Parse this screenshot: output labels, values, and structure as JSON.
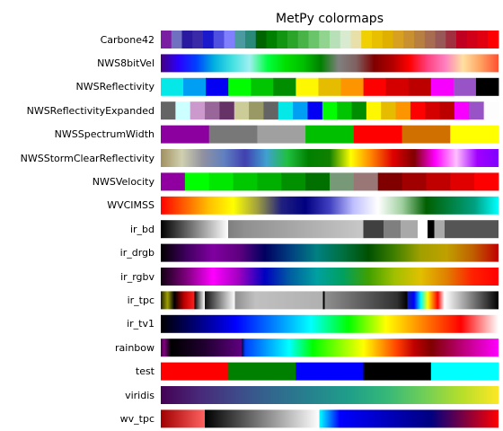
{
  "chart_data": {
    "type": "colormap-strips",
    "title": "MetPy colormaps",
    "rows": [
      {
        "name": "Carbone42",
        "mode": "discrete",
        "colors": [
          "#7a1fa2",
          "#7070c0",
          "#2a1aa0",
          "#3a2aa8",
          "#1a1acc",
          "#5050e0",
          "#8080ff",
          "#4a9aa0",
          "#2a8a7a",
          "#006400",
          "#008000",
          "#129612",
          "#2aa52a",
          "#48b448",
          "#6ac46a",
          "#90d490",
          "#b8e0b8",
          "#d8ead0",
          "#e8e0a8",
          "#f0d000",
          "#e8c000",
          "#e0b000",
          "#d8a020",
          "#c89030",
          "#b88040",
          "#a86c50",
          "#985858",
          "#a03040",
          "#c00020",
          "#d00018",
          "#e00010",
          "#ff0000"
        ]
      },
      {
        "name": "NWS8bitVel",
        "mode": "gradient",
        "colors": [
          "#44007f",
          "#2a00ff",
          "#0040ff",
          "#00b0e0",
          "#40e0e0",
          "#a0f0f0",
          "#00ff40",
          "#00e000",
          "#00c000",
          "#008000",
          "#808080",
          "#806060",
          "#800000",
          "#b00000",
          "#ff0000",
          "#ff4080",
          "#ff80c0",
          "#ffe0a0",
          "#ffa060",
          "#ff5030"
        ]
      },
      {
        "name": "NWSReflectivity",
        "mode": "discrete",
        "colors": [
          "#04e9e7",
          "#019ff4",
          "#0300f4",
          "#02fd02",
          "#01c501",
          "#008e00",
          "#fdf802",
          "#e5bc00",
          "#fd9500",
          "#fd0000",
          "#d40000",
          "#bc0000",
          "#f800fd",
          "#9854c6",
          "#000000"
        ]
      },
      {
        "name": "NWSReflectivityExpanded",
        "mode": "discrete",
        "colors": [
          "#646464",
          "#ccffff",
          "#cc99cc",
          "#996699",
          "#663366",
          "#cccc99",
          "#999966",
          "#646464",
          "#04e9e7",
          "#019ff4",
          "#0300f4",
          "#02fd02",
          "#01c501",
          "#008e00",
          "#fdf802",
          "#e5bc00",
          "#fd9500",
          "#fd0000",
          "#d40000",
          "#bc0000",
          "#f800fd",
          "#9854c6",
          "#fdfdfd"
        ]
      },
      {
        "name": "NWSSpectrumWidth",
        "mode": "discrete",
        "colors": [
          "#8c00a0",
          "#787878",
          "#a0a0a0",
          "#00be00",
          "#ff0000",
          "#d07000",
          "#ffff00"
        ]
      },
      {
        "name": "NWSStormClearReflectivity",
        "mode": "gradient",
        "colors": [
          "#a09060",
          "#d0d0b0",
          "#9090a0",
          "#6080c0",
          "#4040b0",
          "#40a0d0",
          "#20c040",
          "#008000",
          "#108000",
          "#ffff00",
          "#ff8000",
          "#e00000",
          "#800000",
          "#ff00ff",
          "#ffc0ff",
          "#a000ff",
          "#8000ff"
        ]
      },
      {
        "name": "NWSVelocity",
        "mode": "discrete",
        "colors": [
          "#9000a0",
          "#00ff00",
          "#00e800",
          "#00c800",
          "#00b000",
          "#009000",
          "#007000",
          "#779977",
          "#997777",
          "#800000",
          "#a00000",
          "#c00000",
          "#e00000",
          "#ff0000"
        ]
      },
      {
        "name": "WVCIMSS",
        "mode": "gradient",
        "colors": [
          "#ff0000",
          "#ff6000",
          "#ffc000",
          "#ffff00",
          "#a0a040",
          "#202080",
          "#000080",
          "#4040c0",
          "#c0c0ff",
          "#ffffff",
          "#a0d0a0",
          "#006000",
          "#008040",
          "#00a080",
          "#00ffff"
        ]
      },
      {
        "name": "ir_bd",
        "mode": "stops",
        "stops": [
          [
            0,
            "#000000"
          ],
          [
            0.2,
            "#ffffff"
          ],
          [
            0.2,
            "#7f7f7f"
          ],
          [
            0.25,
            "#909090"
          ],
          [
            0.6,
            "#c8c8c8"
          ],
          [
            0.6,
            "#404040"
          ],
          [
            0.66,
            "#404040"
          ],
          [
            0.66,
            "#7f7f7f"
          ],
          [
            0.71,
            "#7f7f7f"
          ],
          [
            0.71,
            "#a9a9a9"
          ],
          [
            0.76,
            "#a9a9a9"
          ],
          [
            0.76,
            "#ffffff"
          ],
          [
            0.79,
            "#ffffff"
          ],
          [
            0.79,
            "#000000"
          ],
          [
            0.81,
            "#000000"
          ],
          [
            0.81,
            "#a9a9a9"
          ],
          [
            0.84,
            "#a9a9a9"
          ],
          [
            0.84,
            "#555555"
          ],
          [
            1,
            "#555555"
          ]
        ]
      },
      {
        "name": "ir_drgb",
        "mode": "gradient",
        "colors": [
          "#000000",
          "#400060",
          "#8000a0",
          "#600080",
          "#000060",
          "#004080",
          "#008080",
          "#007040",
          "#005000",
          "#408000",
          "#a0a000",
          "#c0a000",
          "#c06000",
          "#c00000"
        ]
      },
      {
        "name": "ir_rgbv",
        "mode": "gradient",
        "colors": [
          "#100010",
          "#800080",
          "#ff00ff",
          "#a000c0",
          "#0000c0",
          "#0060a0",
          "#00a0a0",
          "#00a060",
          "#40a000",
          "#a0c000",
          "#e0c000",
          "#e08000",
          "#ff2000",
          "#ff0000"
        ]
      },
      {
        "name": "ir_tpc",
        "mode": "stops",
        "stops": [
          [
            0,
            "#202000"
          ],
          [
            0.02,
            "#a0a000"
          ],
          [
            0.04,
            "#000000"
          ],
          [
            0.07,
            "#c00000"
          ],
          [
            0.1,
            "#ff2020"
          ],
          [
            0.1,
            "#000000"
          ],
          [
            0.13,
            "#ffffff"
          ],
          [
            0.13,
            "#101010"
          ],
          [
            0.22,
            "#ffffff"
          ],
          [
            0.22,
            "#909090"
          ],
          [
            0.28,
            "#c0c0c0"
          ],
          [
            0.48,
            "#b0b0b0"
          ],
          [
            0.48,
            "#000000"
          ],
          [
            0.485,
            "#000000"
          ],
          [
            0.485,
            "#909090"
          ],
          [
            0.7,
            "#303030"
          ],
          [
            0.73,
            "#000000"
          ],
          [
            0.73,
            "#1020a0"
          ],
          [
            0.75,
            "#0000ff"
          ],
          [
            0.77,
            "#00ffff"
          ],
          [
            0.79,
            "#ffff00"
          ],
          [
            0.82,
            "#ff0000"
          ],
          [
            0.84,
            "#ffffff"
          ],
          [
            0.86,
            "#e0e0e0"
          ],
          [
            1,
            "#000000"
          ]
        ]
      },
      {
        "name": "ir_tv1",
        "mode": "gradient",
        "colors": [
          "#000000",
          "#000080",
          "#0000ff",
          "#0080ff",
          "#00ffff",
          "#00ff00",
          "#ffff00",
          "#ff8000",
          "#ff0000",
          "#ffffff"
        ]
      },
      {
        "name": "rainbow",
        "mode": "stops",
        "stops": [
          [
            0,
            "#400040"
          ],
          [
            0.01,
            "#800080"
          ],
          [
            0.03,
            "#000000"
          ],
          [
            0.13,
            "#200030"
          ],
          [
            0.24,
            "#600080"
          ],
          [
            0.24,
            "#000040"
          ],
          [
            0.25,
            "#0040ff"
          ],
          [
            0.38,
            "#00ffff"
          ],
          [
            0.45,
            "#00ff00"
          ],
          [
            0.6,
            "#ffff00"
          ],
          [
            0.7,
            "#ff4000"
          ],
          [
            0.75,
            "#c00000"
          ],
          [
            0.8,
            "#800000"
          ],
          [
            1,
            "#ff00ff"
          ]
        ]
      },
      {
        "name": "test",
        "mode": "discrete",
        "colors": [
          "#ff0000",
          "#008000",
          "#0000ff",
          "#000000",
          "#00ffff"
        ]
      },
      {
        "name": "viridis",
        "mode": "gradient",
        "colors": [
          "#440154",
          "#482878",
          "#3e4989",
          "#31688e",
          "#26828e",
          "#1f9e89",
          "#35b779",
          "#6ece58",
          "#b5de2b",
          "#fde725"
        ]
      },
      {
        "name": "wv_tpc",
        "mode": "stops",
        "stops": [
          [
            0,
            "#a00000"
          ],
          [
            0.13,
            "#ff6060"
          ],
          [
            0.13,
            "#000000"
          ],
          [
            0.47,
            "#ffffff"
          ],
          [
            0.47,
            "#00ffff"
          ],
          [
            0.53,
            "#0000ff"
          ],
          [
            0.8,
            "#000080"
          ],
          [
            1,
            "#ff0000"
          ]
        ]
      }
    ]
  }
}
